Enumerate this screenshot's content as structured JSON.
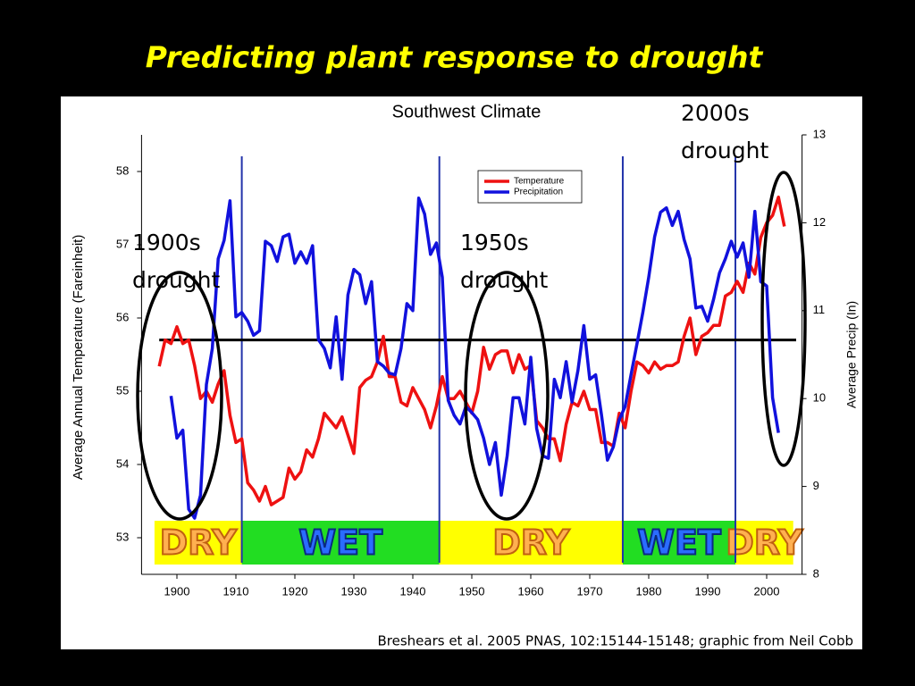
{
  "slide_title": "Predicting plant response to drought",
  "source": "Breshears et al. 2005 PNAS, 102:15144-15148; graphic from Neil Cobb",
  "chart_data": {
    "type": "line",
    "title": "Southwest Climate",
    "y_label": "Average Annual Temperature (Fareinheit)",
    "y2_label": "Average Precip (In)",
    "xlim": [
      1894,
      2006
    ],
    "xticks": [
      1900,
      1910,
      1920,
      1930,
      1940,
      1950,
      1960,
      1970,
      1980,
      1990,
      2000
    ],
    "ylim": [
      52.5,
      58.5
    ],
    "yticks": [
      53,
      54,
      55,
      56,
      57,
      58
    ],
    "y2lim": [
      8,
      13
    ],
    "y2ticks": [
      8,
      9,
      10,
      11,
      12,
      13
    ],
    "reference_y": 55.7,
    "series": [
      {
        "name": "Temperature",
        "color": "#ee1111",
        "x": [
          1897,
          1898,
          1899,
          1900,
          1901,
          1902,
          1903,
          1904,
          1905,
          1906,
          1907,
          1908,
          1909,
          1910,
          1911,
          1912,
          1913,
          1914,
          1915,
          1916,
          1917,
          1918,
          1919,
          1920,
          1921,
          1922,
          1923,
          1924,
          1925,
          1926,
          1927,
          1928,
          1929,
          1930,
          1931,
          1932,
          1933,
          1934,
          1935,
          1936,
          1937,
          1938,
          1939,
          1940,
          1941,
          1942,
          1943,
          1944,
          1945,
          1946,
          1947,
          1948,
          1949,
          1950,
          1951,
          1952,
          1953,
          1954,
          1955,
          1956,
          1957,
          1958,
          1959,
          1960,
          1961,
          1962,
          1963,
          1964,
          1965,
          1966,
          1967,
          1968,
          1969,
          1970,
          1971,
          1972,
          1973,
          1974,
          1975,
          1976,
          1977,
          1978,
          1979,
          1980,
          1981,
          1982,
          1983,
          1984,
          1985,
          1986,
          1987,
          1988,
          1989,
          1990,
          1991,
          1992,
          1993,
          1994,
          1995,
          1996,
          1997,
          1998,
          1999,
          2000,
          2001,
          2002,
          2003
        ],
        "values": [
          55.34,
          55.7,
          55.65,
          55.88,
          55.65,
          55.7,
          55.35,
          54.9,
          55.0,
          54.85,
          55.1,
          55.28,
          54.67,
          54.3,
          54.35,
          53.75,
          53.65,
          53.5,
          53.7,
          53.45,
          53.5,
          53.55,
          53.95,
          53.8,
          53.9,
          54.2,
          54.1,
          54.35,
          54.7,
          54.6,
          54.5,
          54.65,
          54.4,
          54.15,
          55.05,
          55.15,
          55.2,
          55.4,
          55.75,
          55.2,
          55.2,
          54.85,
          54.8,
          55.05,
          54.9,
          54.75,
          54.5,
          54.8,
          55.2,
          54.9,
          54.9,
          55.0,
          54.85,
          54.7,
          55.0,
          55.6,
          55.3,
          55.5,
          55.55,
          55.55,
          55.25,
          55.5,
          55.3,
          55.35,
          54.6,
          54.5,
          54.35,
          54.35,
          54.05,
          54.55,
          54.85,
          54.8,
          55.0,
          54.75,
          54.75,
          54.3,
          54.3,
          54.25,
          54.7,
          54.5,
          55.0,
          55.4,
          55.35,
          55.25,
          55.4,
          55.3,
          55.35,
          55.35,
          55.4,
          55.75,
          56.0,
          55.5,
          55.75,
          55.8,
          55.9,
          55.9,
          56.3,
          56.35,
          56.5,
          56.35,
          56.75,
          56.6,
          57.1,
          57.3,
          57.4,
          57.65,
          57.25
        ]
      },
      {
        "name": "Precipitation",
        "color": "#1111dd",
        "axis": "y2",
        "x": [
          1899,
          1900,
          1901,
          1902,
          1903,
          1904,
          1905,
          1906,
          1907,
          1908,
          1909,
          1910,
          1911,
          1912,
          1913,
          1914,
          1915,
          1916,
          1917,
          1918,
          1919,
          1920,
          1921,
          1922,
          1923,
          1924,
          1925,
          1926,
          1927,
          1928,
          1929,
          1930,
          1931,
          1932,
          1933,
          1934,
          1935,
          1936,
          1937,
          1938,
          1939,
          1940,
          1941,
          1942,
          1943,
          1944,
          1945,
          1946,
          1947,
          1948,
          1949,
          1950,
          1951,
          1952,
          1953,
          1954,
          1955,
          1956,
          1957,
          1958,
          1959,
          1960,
          1961,
          1962,
          1963,
          1964,
          1965,
          1966,
          1967,
          1968,
          1969,
          1970,
          1971,
          1972,
          1973,
          1974,
          1975,
          1976,
          1977,
          1978,
          1979,
          1980,
          1981,
          1982,
          1983,
          1984,
          1985,
          1986,
          1987,
          1988,
          1989,
          1990,
          1991,
          1992,
          1993,
          1994,
          1995,
          1996,
          1997,
          1998,
          1999,
          2000,
          2001,
          2002
        ],
        "values": [
          10.03,
          9.55,
          9.64,
          8.74,
          8.64,
          8.9,
          10.16,
          10.57,
          11.59,
          11.8,
          12.25,
          10.93,
          10.98,
          10.88,
          10.72,
          10.77,
          11.79,
          11.74,
          11.56,
          11.84,
          11.87,
          11.54,
          11.67,
          11.54,
          11.74,
          10.67,
          10.57,
          10.35,
          10.93,
          10.22,
          11.18,
          11.47,
          11.41,
          11.08,
          11.33,
          10.42,
          10.37,
          10.29,
          10.27,
          10.57,
          11.08,
          11.0,
          12.28,
          12.1,
          11.64,
          11.77,
          11.38,
          9.98,
          9.81,
          9.71,
          9.91,
          9.84,
          9.76,
          9.55,
          9.25,
          9.5,
          8.9,
          9.35,
          10.01,
          10.01,
          9.71,
          10.47,
          9.66,
          9.35,
          9.32,
          10.22,
          10.01,
          10.42,
          9.96,
          10.32,
          10.83,
          10.22,
          10.27,
          9.81,
          9.3,
          9.45,
          9.76,
          9.91,
          10.27,
          10.62,
          10.98,
          11.38,
          11.84,
          12.12,
          12.17,
          11.97,
          12.13,
          11.81,
          11.59,
          11.03,
          11.05,
          10.88,
          11.13,
          11.43,
          11.59,
          11.79,
          11.61,
          11.77,
          11.38,
          12.13,
          11.33,
          11.28,
          10.01,
          9.61
        ]
      }
    ],
    "periods": [
      {
        "label": "DRY",
        "start": 1896.2,
        "end": 1911,
        "color": "#ffff00"
      },
      {
        "label": "WET",
        "start": 1911,
        "end": 1944.5,
        "color": "#22dd22"
      },
      {
        "label": "DRY",
        "start": 1944.5,
        "end": 1975.6,
        "color": "#ffff00"
      },
      {
        "label": "WET",
        "start": 1975.6,
        "end": 1994.7,
        "color": "#22dd22"
      },
      {
        "label": "DRY",
        "start": 1994.7,
        "end": 2004.5,
        "color": "#ffff00"
      }
    ],
    "annotations": [
      {
        "lines": [
          "1900s",
          "drought"
        ]
      },
      {
        "lines": [
          "1950s",
          "drought"
        ]
      },
      {
        "lines": [
          "2000s",
          "drought"
        ]
      }
    ]
  }
}
